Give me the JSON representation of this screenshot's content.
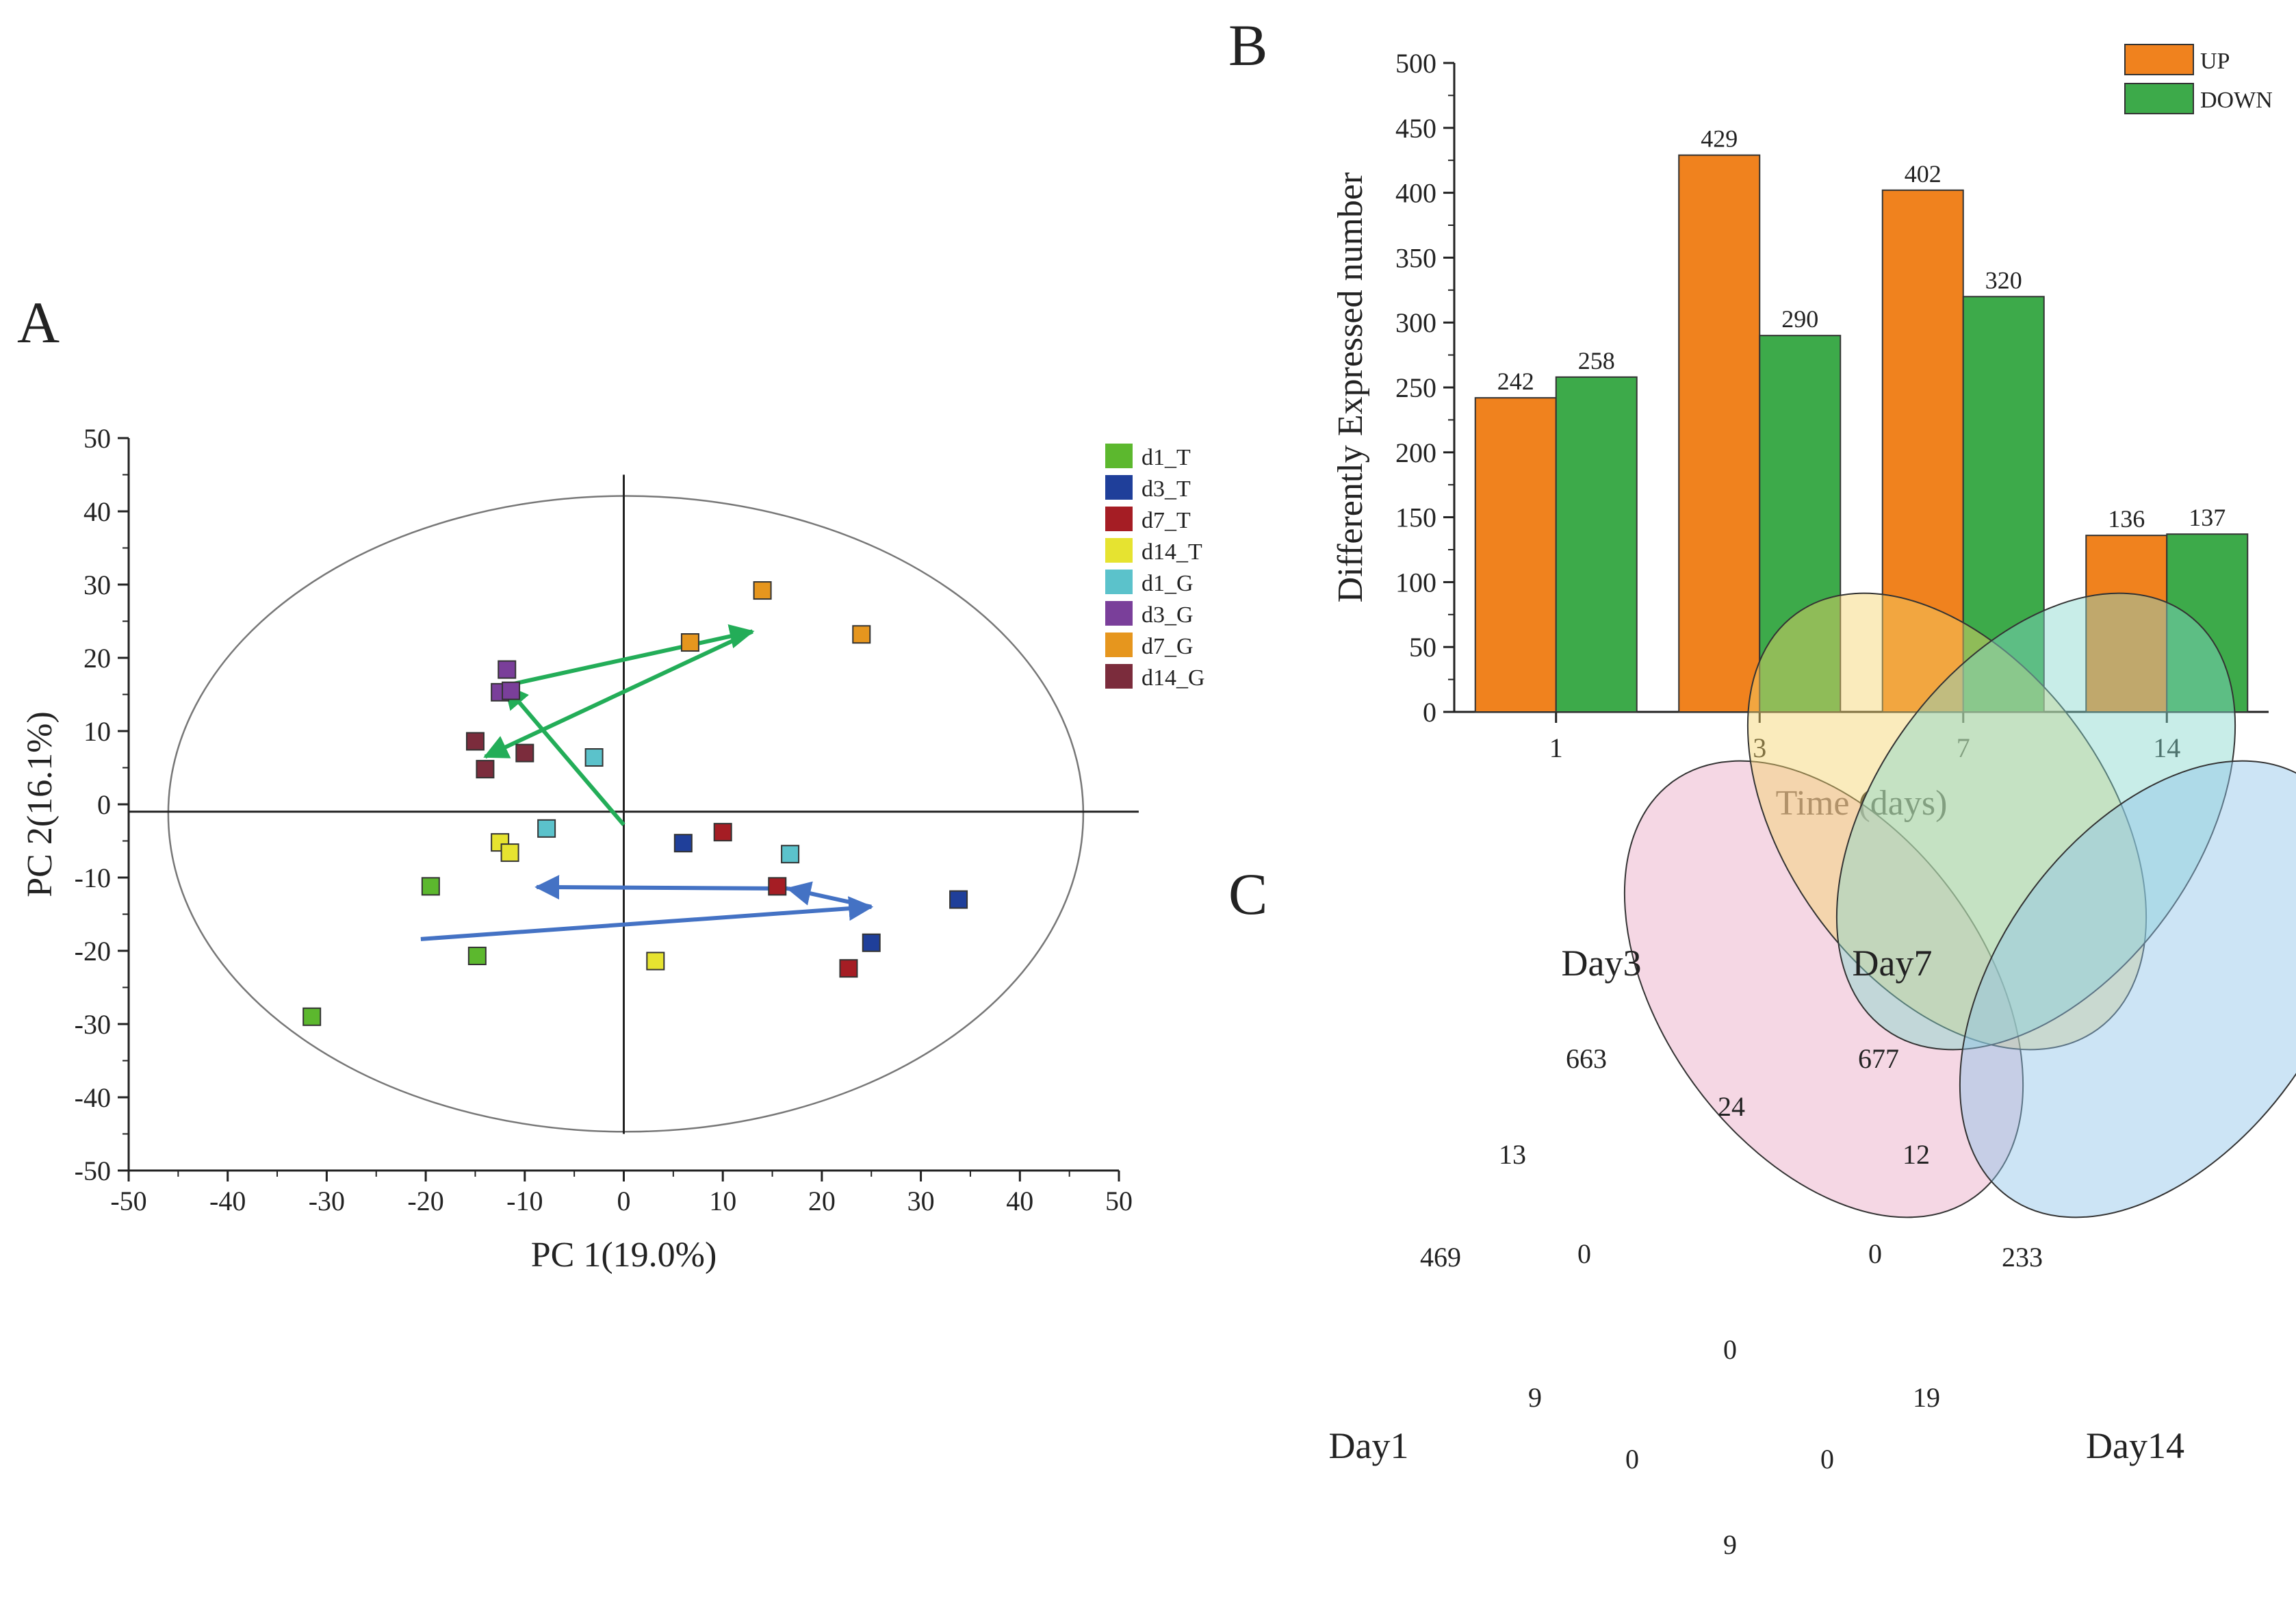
{
  "panels": {
    "a": "A",
    "b": "B",
    "c": "C"
  },
  "colors": {
    "d1_T": "#5cb82e",
    "d3_T": "#1f3f9a",
    "d7_T": "#a51d24",
    "d14_T": "#e6e330",
    "d1_G": "#5bc2cb",
    "d3_G": "#7a3f9a",
    "d7_G": "#e6961e",
    "d14_G": "#7b2c3c",
    "up": "#f0821e",
    "down": "#3daa4a",
    "arrow_green": "#23ad58",
    "arrow_blue": "#4472c4",
    "venn_day1": "#e8a6c3",
    "venn_day3": "#f5d36b",
    "venn_day7": "#86d6cc",
    "venn_day14": "#8fc3e8"
  },
  "chart_data": [
    {
      "panel": "A",
      "type": "scatter",
      "xlabel": "PC 1(19.0%)",
      "ylabel": "PC 2(16.1%)",
      "xlim": [
        -50,
        50
      ],
      "ylim": [
        -50,
        50
      ],
      "xticks": [
        "-50",
        "-40",
        "-30",
        "-20",
        "-10",
        "0",
        "10",
        "20",
        "30",
        "40",
        "50"
      ],
      "yticks": [
        "50",
        "40",
        "30",
        "20",
        "10",
        "0",
        "-10",
        "-20",
        "-30",
        "-40",
        "-50"
      ],
      "legend": [
        "d1_T",
        "d3_T",
        "d7_T",
        "d14_T",
        "d1_G",
        "d3_G",
        "d7_G",
        "d14_G"
      ],
      "series": [
        {
          "name": "d1_T",
          "points": [
            [
              -31.5,
              -29
            ],
            [
              -19.5,
              -11.2
            ],
            [
              -14.8,
              -20.7
            ]
          ]
        },
        {
          "name": "d3_T",
          "points": [
            [
              6,
              -5.3
            ],
            [
              25,
              -18.9
            ],
            [
              33.8,
              -13
            ]
          ]
        },
        {
          "name": "d7_T",
          "points": [
            [
              10,
              -3.8
            ],
            [
              15.5,
              -11.2
            ],
            [
              22.7,
              -22.4
            ]
          ]
        },
        {
          "name": "d14_T",
          "points": [
            [
              -12.5,
              -5.2
            ],
            [
              -11.5,
              -6.6
            ],
            [
              3.2,
              -21.4
            ]
          ]
        },
        {
          "name": "d1_G",
          "points": [
            [
              -3,
              6.4
            ],
            [
              -7.8,
              -3.3
            ],
            [
              16.8,
              -6.8
            ]
          ]
        },
        {
          "name": "d3_G",
          "points": [
            [
              -11.8,
              18.4
            ],
            [
              -12.5,
              15.3
            ],
            [
              -11.4,
              15.5
            ]
          ]
        },
        {
          "name": "d7_G",
          "points": [
            [
              6.7,
              22.1
            ],
            [
              14,
              29.2
            ],
            [
              24,
              23.2
            ]
          ]
        },
        {
          "name": "d14_G",
          "points": [
            [
              -15,
              8.6
            ],
            [
              -14,
              4.8
            ],
            [
              -10,
              7
            ]
          ]
        }
      ],
      "trajectories": [
        {
          "name": "G",
          "color": "arrow_green",
          "points": [
            [
              0,
              -2.8
            ],
            [
              -12,
              16.2
            ],
            [
              13,
              23.6
            ],
            [
              -14,
              6.5
            ]
          ]
        },
        {
          "name": "T",
          "color": "arrow_blue",
          "points": [
            [
              -20.5,
              -18.4
            ],
            [
              25,
              -14
            ],
            [
              16.6,
              -11.5
            ],
            [
              -8.8,
              -11.3
            ]
          ]
        }
      ],
      "ellipse": {
        "cx": 0.2,
        "cy": -1.3,
        "rx": 46.2,
        "ry": 43.4
      }
    },
    {
      "panel": "B",
      "type": "bar",
      "xlabel": "Time (days)",
      "ylabel": "Differently Expressed number",
      "categories": [
        "1",
        "3",
        "7",
        "14"
      ],
      "ylim": [
        0,
        500
      ],
      "yticks": [
        "0",
        "50",
        "100",
        "150",
        "200",
        "250",
        "300",
        "350",
        "400",
        "450",
        "500"
      ],
      "series": [
        {
          "name": "UP",
          "values": [
            242,
            429,
            402,
            136
          ]
        },
        {
          "name": "DOWN",
          "values": [
            258,
            290,
            320,
            137
          ]
        }
      ],
      "legend_position": "top-right"
    },
    {
      "panel": "C",
      "type": "venn",
      "sets": [
        "Day1",
        "Day3",
        "Day7",
        "Day14"
      ],
      "regions": [
        {
          "sets": [
            "Day1"
          ],
          "value": 469
        },
        {
          "sets": [
            "Day3"
          ],
          "value": 663
        },
        {
          "sets": [
            "Day7"
          ],
          "value": 677
        },
        {
          "sets": [
            "Day14"
          ],
          "value": 233
        },
        {
          "sets": [
            "Day1",
            "Day3"
          ],
          "value": 13
        },
        {
          "sets": [
            "Day3",
            "Day7"
          ],
          "value": 24
        },
        {
          "sets": [
            "Day7",
            "Day14"
          ],
          "value": 12
        },
        {
          "sets": [
            "Day1",
            "Day14"
          ],
          "value": 9
        },
        {
          "sets": [
            "Day1",
            "Day3",
            "Day7"
          ],
          "value": 0
        },
        {
          "sets": [
            "Day3",
            "Day7",
            "Day14"
          ],
          "value": 0
        },
        {
          "sets": [
            "Day1",
            "Day3",
            "Day7",
            "Day14"
          ],
          "value": 0
        },
        {
          "sets": [
            "Day1",
            "Day7"
          ],
          "value": 9
        },
        {
          "sets": [
            "Day3",
            "Day14"
          ],
          "value": 19
        },
        {
          "sets": [
            "Day1",
            "Day7",
            "Day14"
          ],
          "value": 0
        },
        {
          "sets": [
            "Day1",
            "Day3",
            "Day14"
          ],
          "value": 0
        }
      ]
    }
  ]
}
